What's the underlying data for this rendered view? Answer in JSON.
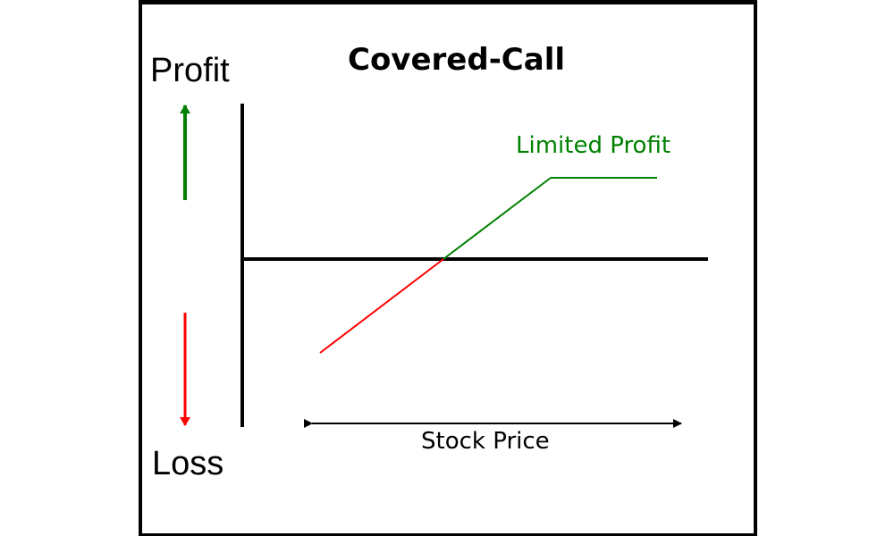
{
  "diagram": {
    "title": "Covered-Call",
    "y_axis_top_label": "Profit",
    "y_axis_bottom_label": "Loss",
    "x_axis_label": "Stock Price",
    "annotation": "Limited Profit"
  },
  "colors": {
    "profit": "#008000",
    "loss": "#ff0000",
    "axis": "#000000",
    "background": "#ffffff"
  }
}
